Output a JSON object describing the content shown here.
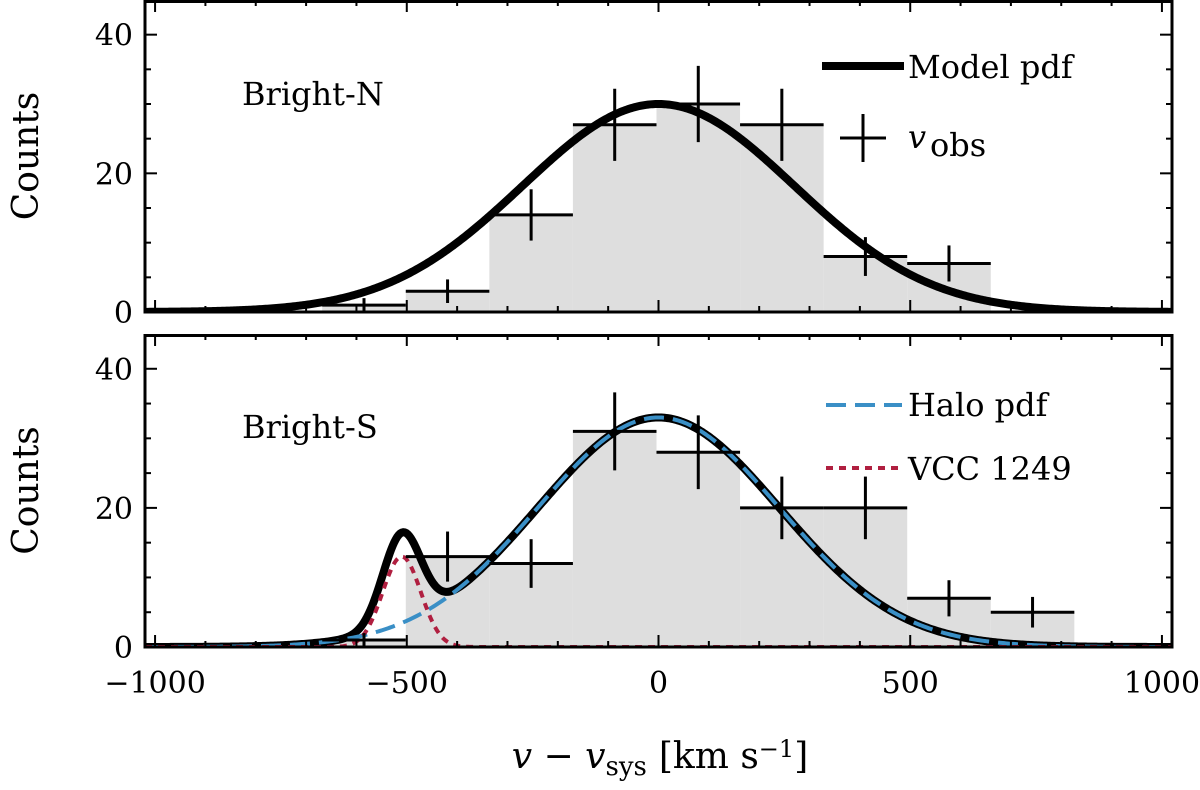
{
  "chart_data": [
    {
      "type": "bar",
      "panel_label": "Bright-N",
      "ylabel": "Counts",
      "xlim": [
        -1020,
        1020
      ],
      "ylim": [
        0,
        45
      ],
      "yticks": [
        0,
        20,
        40
      ],
      "histogram": {
        "bin_edges": [
          -1000,
          -834,
          -668,
          -502,
          -336,
          -170,
          -4,
          162,
          328,
          494,
          660,
          826,
          992
        ],
        "counts": [
          0,
          0,
          1,
          3,
          14,
          27,
          30,
          27,
          8,
          7,
          0,
          0
        ]
      },
      "observed": {
        "name": "v_obs",
        "x": [
          -917,
          -751,
          -585,
          -419,
          -253,
          -87,
          79,
          245,
          411,
          577,
          743,
          909
        ],
        "y": [
          0,
          0,
          1,
          3,
          14,
          27,
          30,
          27,
          8,
          7,
          0,
          0
        ],
        "xerr": 83,
        "yerr": [
          0,
          0,
          1,
          1.7,
          3.7,
          5.2,
          5.5,
          5.2,
          2.8,
          2.6,
          0,
          0
        ]
      },
      "model": {
        "name": "Model pdf",
        "components": [
          {
            "amplitude": 30,
            "mean": 0,
            "sigma": 270
          }
        ]
      },
      "legend": [
        "Model pdf",
        "v",
        "obs"
      ]
    },
    {
      "type": "bar",
      "panel_label": "Bright-S",
      "ylabel": "Counts",
      "xlabel": "v − v",
      "xlabel_sub": "sys",
      "xlabel_units": "[km s",
      "xlabel_units_sup": "−1",
      "xlabel_units_end": "]",
      "xlim": [
        -1020,
        1020
      ],
      "ylim": [
        0,
        45
      ],
      "yticks": [
        0,
        20,
        40
      ],
      "xticks": [
        -1000,
        -500,
        0,
        500,
        1000
      ],
      "xtick_labels": [
        "−1000",
        "−500",
        "0",
        "500",
        "1000"
      ],
      "histogram": {
        "bin_edges": [
          -1000,
          -834,
          -668,
          -502,
          -336,
          -170,
          -4,
          162,
          328,
          494,
          660,
          826,
          992
        ],
        "counts": [
          0,
          0,
          1,
          13,
          12,
          31,
          28,
          20,
          20,
          7,
          5,
          0
        ]
      },
      "observed": {
        "name": "v_obs",
        "x": [
          -917,
          -751,
          -585,
          -419,
          -253,
          -87,
          79,
          245,
          411,
          577,
          743,
          909
        ],
        "y": [
          0,
          0,
          1,
          13,
          12,
          31,
          28,
          20,
          20,
          7,
          5,
          0
        ],
        "xerr": 83,
        "yerr": [
          0,
          0,
          1,
          3.6,
          3.5,
          5.6,
          5.3,
          4.5,
          4.5,
          2.6,
          2.2,
          0
        ]
      },
      "halo": {
        "name": "Halo pdf",
        "color": "#3a8fc6",
        "components": [
          {
            "amplitude": 33,
            "mean": 0,
            "sigma": 240
          }
        ]
      },
      "satellite": {
        "name": "VCC 1249",
        "color": "#b01f40",
        "components": [
          {
            "amplitude": 13,
            "mean": -510,
            "sigma": 38
          }
        ]
      },
      "legend": [
        "Halo pdf",
        "VCC 1249"
      ]
    }
  ]
}
